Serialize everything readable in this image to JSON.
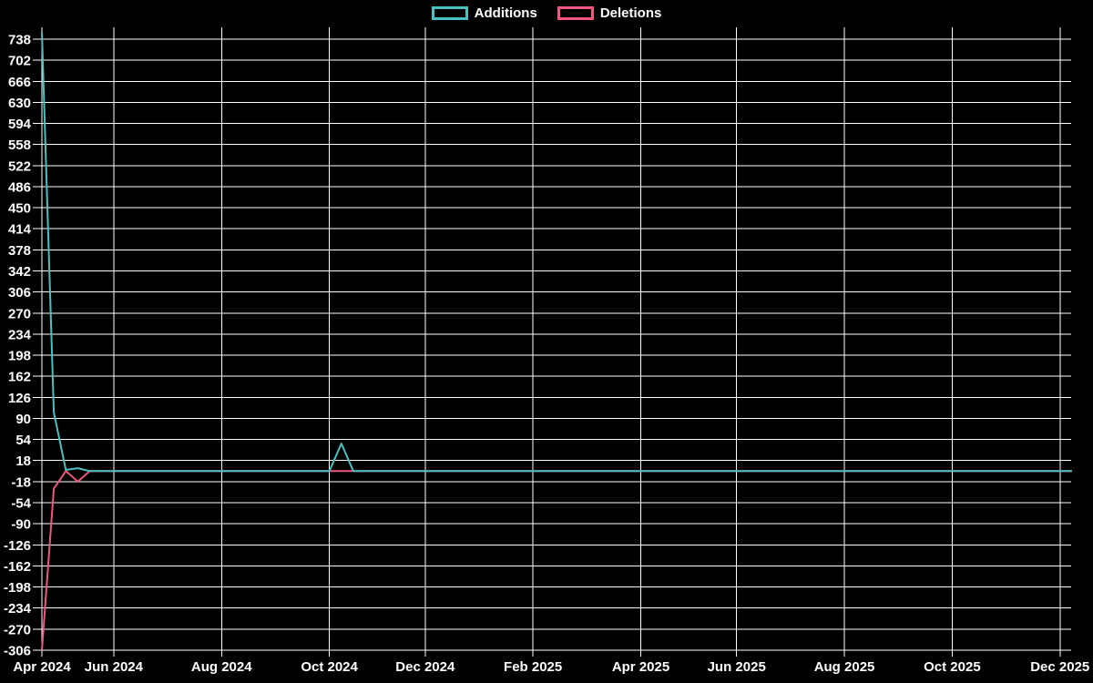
{
  "chart_data": {
    "type": "line",
    "background_color": "#000000",
    "grid_color": "#ffffff",
    "text_color": "#ffffff",
    "legend_position": "top-center",
    "grid": true,
    "x_axis": {
      "tick_labels": [
        "Apr 2024",
        "Jun 2024",
        "Aug 2024",
        "Oct 2024",
        "Dec 2024",
        "Feb 2025",
        "Apr 2025",
        "Jun 2025",
        "Aug 2025",
        "Oct 2025",
        "Dec 2025"
      ],
      "tick_weeks": [
        0,
        6,
        15,
        24,
        32,
        41,
        50,
        58,
        67,
        76,
        85
      ],
      "unit": "week",
      "weeks_total": 87,
      "xlim_weeks": [
        0,
        86
      ]
    },
    "y_axis": {
      "ticks": [
        738,
        702,
        666,
        630,
        594,
        558,
        522,
        486,
        450,
        414,
        378,
        342,
        306,
        270,
        234,
        198,
        162,
        126,
        90,
        54,
        18,
        -18,
        -54,
        -90,
        -126,
        -162,
        -198,
        -234,
        -270,
        -306
      ],
      "tick_step": 36,
      "ylim": [
        -306,
        758
      ]
    },
    "series": [
      {
        "name": "Additions",
        "color": "#4bc0c0",
        "values": [
          750,
          100,
          2,
          5,
          0,
          0,
          0,
          0,
          0,
          0,
          0,
          0,
          0,
          0,
          0,
          0,
          0,
          0,
          0,
          0,
          0,
          0,
          0,
          0,
          0,
          47,
          0,
          0,
          0,
          0,
          0,
          0,
          0,
          0,
          0,
          0,
          0,
          0,
          0,
          0,
          0,
          0,
          0,
          0,
          0,
          0,
          0,
          0,
          0,
          0,
          0,
          0,
          0,
          0,
          0,
          0,
          0,
          0,
          0,
          0,
          0,
          0,
          0,
          0,
          0,
          0,
          0,
          0,
          0,
          0,
          0,
          0,
          0,
          0,
          0,
          0,
          0,
          0,
          0,
          0,
          0,
          0,
          0,
          0,
          0,
          0,
          0
        ]
      },
      {
        "name": "Deletions",
        "color": "#f0567f",
        "values": [
          -306,
          -30,
          0,
          -18,
          0,
          0,
          0,
          0,
          0,
          0,
          0,
          0,
          0,
          0,
          0,
          0,
          0,
          0,
          0,
          0,
          0,
          0,
          0,
          0,
          0,
          0,
          0,
          0,
          0,
          0,
          0,
          0,
          0,
          0,
          0,
          0,
          0,
          0,
          0,
          0,
          0,
          0,
          0,
          0,
          0,
          0,
          0,
          0,
          0,
          0,
          0,
          0,
          0,
          0,
          0,
          0,
          0,
          0,
          0,
          0,
          0,
          0,
          0,
          0,
          0,
          0,
          0,
          0,
          0,
          0,
          0,
          0,
          0,
          0,
          0,
          0,
          0,
          0,
          0,
          0,
          0,
          0,
          0,
          0,
          0,
          0,
          0
        ]
      }
    ]
  }
}
